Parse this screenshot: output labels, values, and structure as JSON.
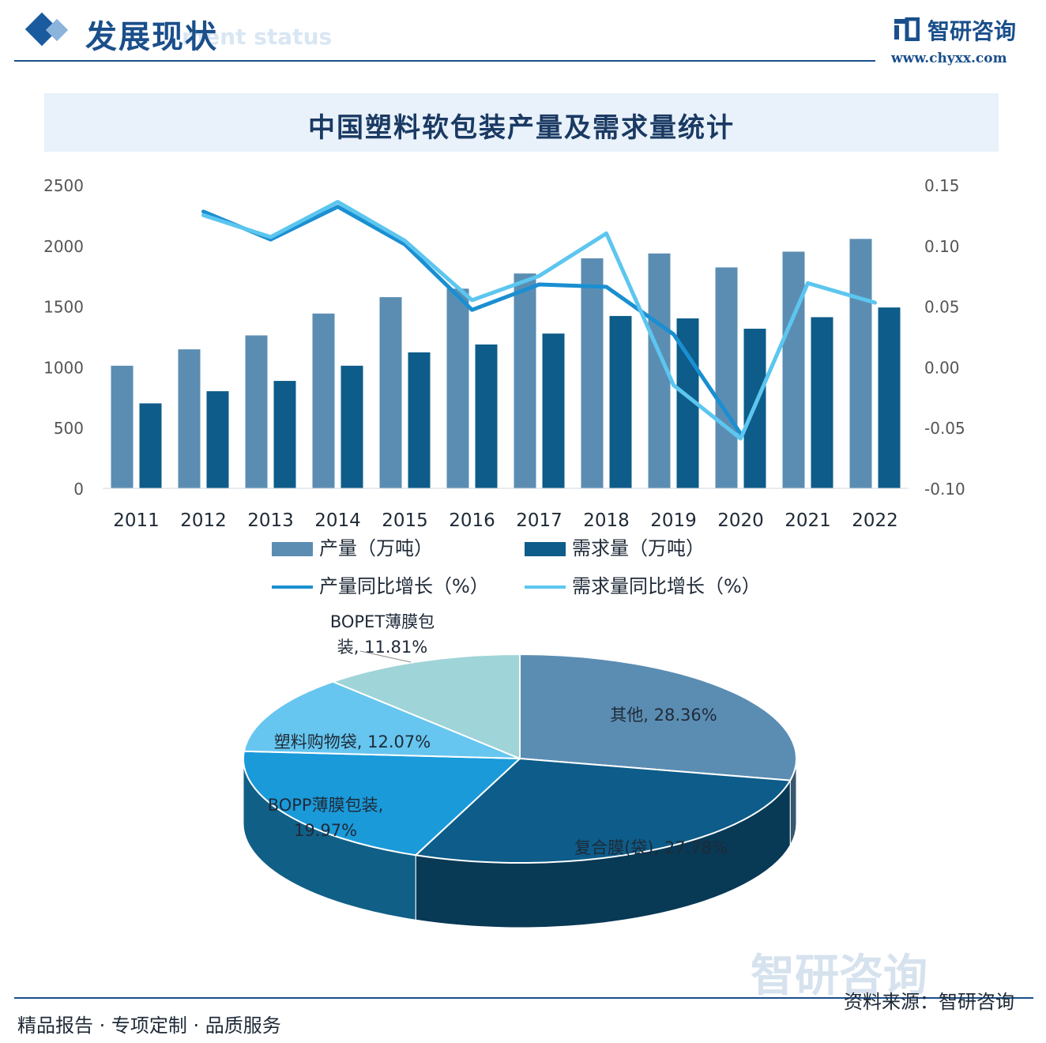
{
  "header": {
    "section_title": "发展现状",
    "section_subtitle": "ment status",
    "brand_name": "智研咨询",
    "brand_url": "www.chyxx.com"
  },
  "footer": {
    "left_text": "精品报告 · 专项定制 · 品质服务",
    "source_text": "资料来源：智研咨询",
    "watermark_text": "智研咨询"
  },
  "colors": {
    "primary": "#1a4f8b",
    "bar_production": "#5b8db3",
    "bar_demand": "#0d5c89",
    "line_production": "#1a8fd1",
    "line_demand": "#5cc6ef"
  },
  "chart_data": [
    {
      "type": "bar",
      "title": "中国塑料软包装产量及需求量统计",
      "categories": [
        "2011",
        "2012",
        "2013",
        "2014",
        "2015",
        "2016",
        "2017",
        "2018",
        "2019",
        "2020",
        "2021",
        "2022"
      ],
      "y_left": {
        "range": [
          0,
          2500
        ],
        "ticks": [
          "0",
          "500",
          "1000",
          "1500",
          "2000",
          "2500"
        ]
      },
      "y_right": {
        "range": [
          -0.1,
          0.15
        ],
        "ticks": [
          "-0.10",
          "-0.05",
          "0.00",
          "0.05",
          "0.10",
          "0.15"
        ]
      },
      "series": [
        {
          "name": "产量（万吨）",
          "kind": "bar",
          "axis": "left",
          "values": [
            1010,
            1145,
            1260,
            1440,
            1575,
            1645,
            1770,
            1895,
            1935,
            1820,
            1950,
            2055
          ]
        },
        {
          "name": "需求量（万吨）",
          "kind": "bar",
          "axis": "left",
          "values": [
            700,
            800,
            885,
            1010,
            1120,
            1185,
            1275,
            1420,
            1400,
            1315,
            1410,
            1490
          ]
        },
        {
          "name": "产量同比增长（%）",
          "kind": "line",
          "axis": "right",
          "values": [
            null,
            0.128,
            0.105,
            0.132,
            0.101,
            0.047,
            0.068,
            0.066,
            0.027,
            -0.055,
            null,
            null
          ]
        },
        {
          "name": "需求量同比增长（%）",
          "kind": "line",
          "axis": "right",
          "values": [
            null,
            0.125,
            0.107,
            0.136,
            0.104,
            0.055,
            0.075,
            0.11,
            -0.015,
            -0.059,
            0.069,
            0.053
          ]
        }
      ],
      "legend_position": "bottom"
    },
    {
      "type": "pie",
      "slices": [
        {
          "label": "其他",
          "value": 28.36,
          "display": "其他, 28.36%",
          "color": "#5b8db3"
        },
        {
          "label": "复合膜(袋)",
          "value": 27.78,
          "display": "复合膜(袋), 27.78%",
          "color": "#0d5c89"
        },
        {
          "label": "BOPP薄膜包装",
          "value": 19.97,
          "display_lines": [
            "BOPP薄膜包装,",
            "19.97%"
          ],
          "color": "#1a9ad9"
        },
        {
          "label": "塑料购物袋",
          "value": 12.07,
          "display": "塑料购物袋, 12.07%",
          "color": "#66c6f0"
        },
        {
          "label": "BOPET薄膜包装",
          "value": 11.81,
          "display_lines": [
            "BOPET薄膜包",
            "装, 11.81%"
          ],
          "color": "#9fd4d8"
        }
      ]
    }
  ]
}
